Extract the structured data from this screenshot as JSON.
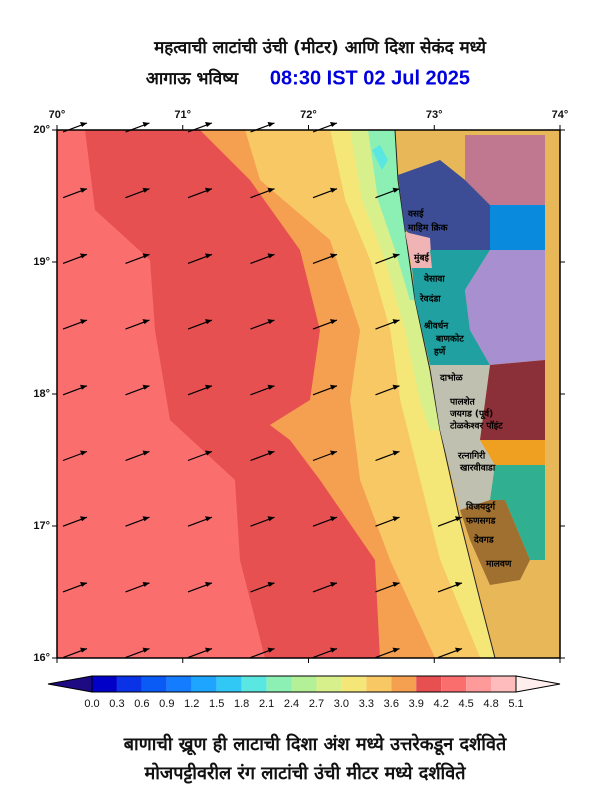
{
  "header": {
    "title": "महत्वाची लाटांची उंची (मीटर) आणि दिशा सेकंद मध्ये",
    "subtitle": "आगाऊ भविष्य",
    "time": "08:30 IST 02 Jul 2025"
  },
  "map": {
    "longitude_labels": [
      "70°",
      "71°",
      "72°",
      "73°",
      "74°"
    ],
    "latitude_labels": [
      "20°",
      "19°",
      "18°",
      "17°",
      "16°"
    ],
    "places": [
      "वसई",
      "माहिम क्रिक",
      "मुंबई",
      "वेसावा",
      "रेवदंडा",
      "श्रीवर्धन",
      "बाणकोट",
      "हर्णे",
      "दाभोळ",
      "पालशेत",
      "जयगड (पूर्व)",
      "टोळकेश्वर पॉइंट",
      "रत्नागिरी",
      "खारवीवाडा",
      "विजयदुर्ग",
      "फणसगड",
      "देवगड",
      "मालवण"
    ]
  },
  "colorbar": {
    "labels": [
      "0.0",
      "0.3",
      "0.6",
      "0.9",
      "1.2",
      "1.5",
      "1.8",
      "2.1",
      "2.4",
      "2.7",
      "3.0",
      "3.3",
      "3.6",
      "3.9",
      "4.2",
      "4.5",
      "4.8",
      "5.1"
    ],
    "colors": [
      "#1e0a82",
      "#0000c8",
      "#0a32e6",
      "#0a5af5",
      "#147dff",
      "#1ea5ff",
      "#32c8f5",
      "#5ae6e1",
      "#8cf0b4",
      "#b4f096",
      "#d7f08c",
      "#f5e678",
      "#f8c864",
      "#f5a050",
      "#e65050",
      "#fa6e6e",
      "#ff9a9a",
      "#ffbcbc",
      "#ffdada",
      "#ffeeee"
    ]
  },
  "footer": {
    "line1": "बाणाची ख्रूण ही लाटाची दिशा अंश मध्ये उत्तरेकडून दर्शविते",
    "line2": "मोजपट्टीवरील रंग लाटांची उंची मीटर मध्ये दर्शविते"
  }
}
